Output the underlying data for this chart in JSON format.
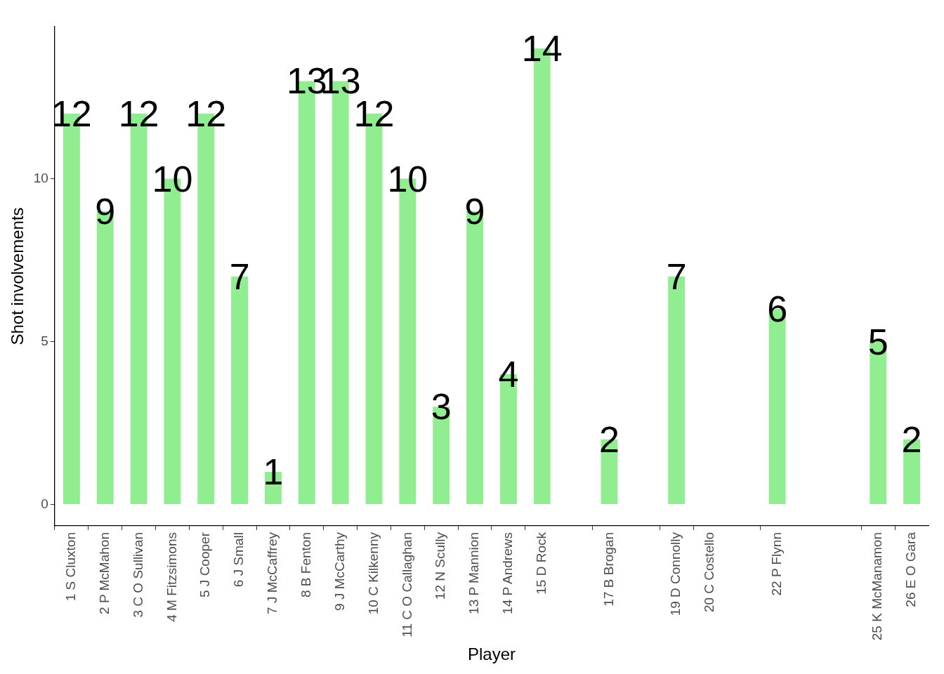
{
  "chart_data": {
    "type": "bar",
    "xlabel": "Player",
    "ylabel": "Shot involvements",
    "categories": [
      "1 S Cluxton",
      "2 P McMahon",
      "3 C O Sullivan",
      "4 M Fitzsimons",
      "5 J Cooper",
      "6 J Small",
      "7 J McCaffrey",
      "8 B Fenton",
      "9 J McCarthy",
      "10 C Kilkenny",
      "11 C O Callaghan",
      "12 N Scully",
      "13 P Mannion",
      "14 P Andrews",
      "15 D Rock",
      null,
      "17 B Brogan",
      null,
      "19 D Connolly",
      "20 C Costello",
      null,
      "22 P Flynn",
      null,
      null,
      "25 K McManamon",
      "26 E O Gara"
    ],
    "values": [
      12,
      9,
      12,
      10,
      12,
      7,
      1,
      13,
      13,
      12,
      10,
      3,
      9,
      4,
      14,
      null,
      2,
      null,
      7,
      null,
      null,
      6,
      null,
      null,
      5,
      2
    ],
    "color": "#90ee90",
    "ylim": [
      -0.66,
      14.67
    ],
    "yticks": [
      0,
      5,
      10
    ],
    "grid": false,
    "legend": false,
    "data_labels": true
  }
}
